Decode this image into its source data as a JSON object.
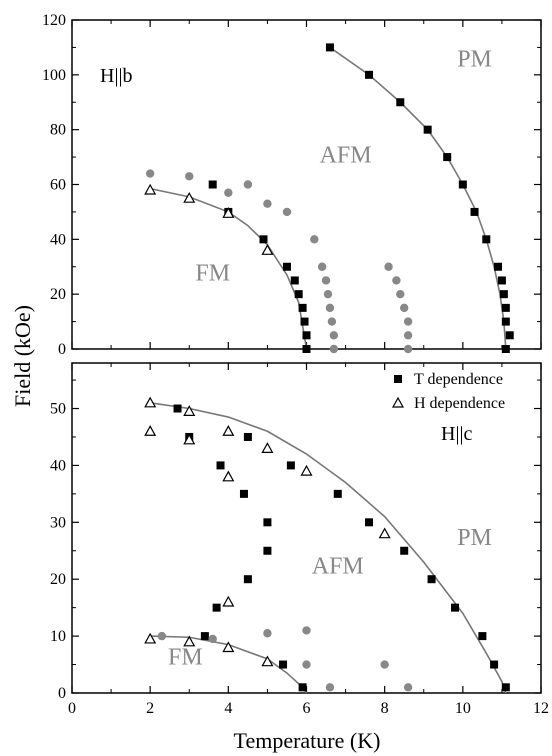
{
  "chart_data": [
    {
      "type": "scatter",
      "panel": "top",
      "xlim": [
        0,
        12
      ],
      "ylim": [
        0,
        120
      ],
      "yticks": [
        0,
        20,
        40,
        60,
        80,
        100,
        120
      ],
      "field_label": "H||b",
      "phase_labels": [
        {
          "text": "PM",
          "x": 10.3,
          "y": 103
        },
        {
          "text": "AFM",
          "x": 7.0,
          "y": 68
        },
        {
          "text": "FM",
          "x": 3.6,
          "y": 25
        }
      ],
      "series": [
        {
          "marker": "square",
          "color": "#000000",
          "points": [
            [
              6.6,
              110
            ],
            [
              7.6,
              100
            ],
            [
              8.4,
              90
            ],
            [
              9.1,
              80
            ],
            [
              9.6,
              70
            ],
            [
              10.0,
              60
            ],
            [
              10.3,
              50
            ],
            [
              10.6,
              40
            ],
            [
              10.9,
              30
            ],
            [
              11.0,
              25
            ],
            [
              11.05,
              20
            ],
            [
              11.1,
              15
            ],
            [
              11.1,
              10
            ],
            [
              11.2,
              5
            ],
            [
              11.1,
              0
            ],
            [
              3.6,
              60
            ],
            [
              4.0,
              50
            ],
            [
              4.9,
              40
            ],
            [
              5.5,
              30
            ],
            [
              5.7,
              25
            ],
            [
              5.8,
              20
            ],
            [
              5.9,
              15
            ],
            [
              5.95,
              10
            ],
            [
              6.0,
              5
            ],
            [
              6.0,
              0
            ]
          ]
        },
        {
          "marker": "triangle",
          "color": "#000000",
          "points": [
            [
              2,
              58
            ],
            [
              3,
              55
            ],
            [
              4,
              49.5
            ],
            [
              5,
              36
            ]
          ]
        },
        {
          "marker": "circle",
          "color": "#888888",
          "points": [
            [
              2,
              64
            ],
            [
              3,
              63
            ],
            [
              4,
              57
            ],
            [
              4.5,
              60
            ],
            [
              5,
              53
            ],
            [
              5.5,
              50
            ],
            [
              6.2,
              40
            ],
            [
              6.4,
              30
            ],
            [
              6.5,
              25
            ],
            [
              6.55,
              20
            ],
            [
              6.6,
              15
            ],
            [
              6.65,
              10
            ],
            [
              6.7,
              5
            ],
            [
              6.7,
              0
            ],
            [
              8.1,
              30
            ],
            [
              8.3,
              25
            ],
            [
              8.4,
              20
            ],
            [
              8.5,
              15
            ],
            [
              8.6,
              10
            ],
            [
              8.6,
              5
            ],
            [
              8.6,
              0
            ]
          ]
        }
      ],
      "fit_lines": [
        {
          "color": "#777777",
          "points": [
            [
              6.6,
              110
            ],
            [
              7.6,
              100
            ],
            [
              8.4,
              90
            ],
            [
              9.1,
              80
            ],
            [
              9.6,
              70
            ],
            [
              10.0,
              60
            ],
            [
              10.35,
              50
            ],
            [
              10.6,
              40
            ],
            [
              10.8,
              30
            ],
            [
              10.95,
              20
            ],
            [
              11.05,
              10
            ],
            [
              11.1,
              0
            ]
          ]
        },
        {
          "color": "#777777",
          "points": [
            [
              2,
              58.5
            ],
            [
              3,
              55.5
            ],
            [
              4,
              50
            ],
            [
              4.5,
              45
            ],
            [
              5,
              38
            ],
            [
              5.5,
              27
            ],
            [
              5.8,
              17
            ],
            [
              6.0,
              0
            ]
          ]
        }
      ]
    },
    {
      "type": "scatter",
      "panel": "bottom",
      "xlim": [
        0,
        12
      ],
      "ylim": [
        0,
        58
      ],
      "yticks": [
        0,
        10,
        20,
        30,
        40,
        50
      ],
      "xticks": [
        0,
        2,
        4,
        6,
        8,
        10,
        12
      ],
      "xlabel": "Temperature (K)",
      "ylabel": "Field (kOe)",
      "field_label": "H||c",
      "phase_labels": [
        {
          "text": "PM",
          "x": 10.3,
          "y": 26
        },
        {
          "text": "AFM",
          "x": 6.8,
          "y": 21
        },
        {
          "text": "FM",
          "x": 2.9,
          "y": 5
        }
      ],
      "legend": [
        {
          "marker": "square",
          "label": "T dependence"
        },
        {
          "marker": "triangle",
          "label": "H dependence"
        }
      ],
      "series": [
        {
          "marker": "square",
          "color": "#000000",
          "points": [
            [
              2.7,
              50
            ],
            [
              3,
              45
            ],
            [
              3.8,
              40
            ],
            [
              4.4,
              35
            ],
            [
              5,
              30
            ],
            [
              5,
              25
            ],
            [
              4.5,
              20
            ],
            [
              3.7,
              15
            ],
            [
              3.4,
              10
            ],
            [
              5.4,
              5
            ],
            [
              5.9,
              1
            ],
            [
              4.5,
              45
            ],
            [
              5.6,
              40
            ],
            [
              6.8,
              35
            ],
            [
              7.6,
              30
            ],
            [
              8.5,
              25
            ],
            [
              9.2,
              20
            ],
            [
              9.8,
              15
            ],
            [
              10.5,
              10
            ],
            [
              10.8,
              5
            ],
            [
              11.1,
              1
            ]
          ]
        },
        {
          "marker": "triangle",
          "color": "#000000",
          "points": [
            [
              2,
              51
            ],
            [
              2,
              46
            ],
            [
              3,
              49.5
            ],
            [
              3,
              44.5
            ],
            [
              4,
              46
            ],
            [
              4,
              38
            ],
            [
              4,
              16
            ],
            [
              5,
              43
            ],
            [
              6,
              39
            ],
            [
              8,
              28
            ],
            [
              2,
              9.5
            ],
            [
              3,
              9
            ],
            [
              4,
              8
            ],
            [
              5,
              5.5
            ]
          ]
        },
        {
          "marker": "circle",
          "color": "#888888",
          "points": [
            [
              2.3,
              10
            ],
            [
              3.6,
              9.5
            ],
            [
              5,
              10.5
            ],
            [
              6,
              11
            ],
            [
              6,
              5
            ],
            [
              8,
              5
            ],
            [
              6.6,
              1
            ],
            [
              8.6,
              1
            ]
          ]
        }
      ],
      "fit_lines": [
        {
          "color": "#777777",
          "points": [
            [
              2,
              51
            ],
            [
              3,
              50
            ],
            [
              4,
              48.5
            ],
            [
              5,
              46
            ],
            [
              6,
              42
            ],
            [
              7,
              37
            ],
            [
              8,
              31
            ],
            [
              9,
              23
            ],
            [
              10,
              14
            ],
            [
              10.6,
              7
            ],
            [
              11.0,
              2
            ],
            [
              11.1,
              0
            ]
          ]
        },
        {
          "color": "#777777",
          "points": [
            [
              2,
              10
            ],
            [
              3,
              9.8
            ],
            [
              4,
              8.5
            ],
            [
              5,
              6
            ],
            [
              5.5,
              3.5
            ],
            [
              5.9,
              1
            ],
            [
              6.0,
              0
            ]
          ]
        }
      ]
    }
  ]
}
